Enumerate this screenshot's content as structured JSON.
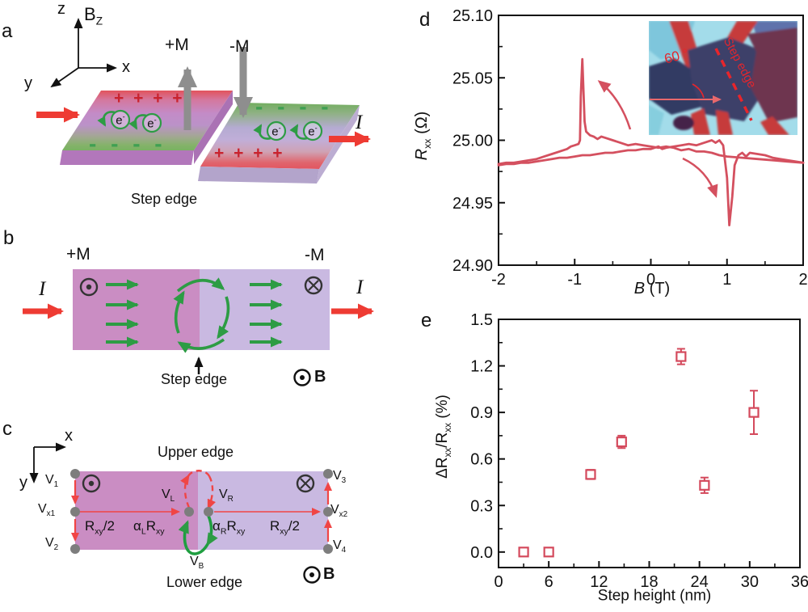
{
  "figure": {
    "panel_a": {
      "label": "a",
      "axis_z": "z",
      "axis_x": "x",
      "axis_y": "y",
      "bz": [
        {
          "t": "B"
        },
        {
          "t": "Z",
          "sub": true
        }
      ],
      "plus_m": "+M",
      "minus_m": "-M",
      "plus_charges_left": "+ + + +",
      "minus_charges_left": "- - - -",
      "minus_charges_right": "- - - -",
      "plus_charges_right": "+ + + +",
      "electron": [
        {
          "t": "e"
        },
        {
          "t": "-",
          "sup": true
        }
      ],
      "current_out": "I",
      "step_edge": "Step edge"
    },
    "panel_b": {
      "label": "b",
      "plus_m": "+M",
      "minus_m": "-M",
      "current_in": "I",
      "current_out": "I",
      "step_edge": "Step edge",
      "field": "B"
    },
    "panel_c": {
      "label": "c",
      "axis_x": "x",
      "axis_y": "y",
      "upper_edge": "Upper edge",
      "lower_edge": "Lower edge",
      "v1": [
        {
          "t": "V"
        },
        {
          "t": "1",
          "sub": true
        }
      ],
      "vx1": [
        {
          "t": "V"
        },
        {
          "t": "x1",
          "sub": true
        }
      ],
      "v2": [
        {
          "t": "V"
        },
        {
          "t": "2",
          "sub": true
        }
      ],
      "v3": [
        {
          "t": "V"
        },
        {
          "t": "3",
          "sub": true
        }
      ],
      "vx2": [
        {
          "t": "V"
        },
        {
          "t": "x2",
          "sub": true
        }
      ],
      "v4": [
        {
          "t": "V"
        },
        {
          "t": "4",
          "sub": true
        }
      ],
      "vl": [
        {
          "t": "V"
        },
        {
          "t": "L",
          "sub": true
        }
      ],
      "vr": [
        {
          "t": "V"
        },
        {
          "t": "R",
          "sub": true
        }
      ],
      "vb": [
        {
          "t": "V"
        },
        {
          "t": "B",
          "sub": true
        }
      ],
      "rxy_left": [
        {
          "t": "R"
        },
        {
          "t": "xy",
          "sub": true
        },
        {
          "t": "/2"
        }
      ],
      "rxy_right": [
        {
          "t": "R"
        },
        {
          "t": "xy",
          "sub": true
        },
        {
          "t": "/2"
        }
      ],
      "alpha_l": [
        {
          "t": "α"
        },
        {
          "t": "L",
          "sub": true
        },
        {
          "t": "R"
        },
        {
          "t": "xy",
          "sub": true
        }
      ],
      "alpha_r": [
        {
          "t": "α"
        },
        {
          "t": "R",
          "sub": true
        },
        {
          "t": "R"
        },
        {
          "t": "xy",
          "sub": true
        }
      ],
      "field": "B"
    },
    "panel_d": {
      "label": "d",
      "ylabel": [
        {
          "t": "R",
          "i": true
        },
        {
          "t": "xx",
          "sub": true
        },
        {
          "t": " (Ω)"
        }
      ],
      "xlabel": [
        {
          "t": "B",
          "i": true
        },
        {
          "t": " (T)"
        }
      ],
      "inset_angle": "60 °",
      "inset_step_edge": "Step edge"
    },
    "panel_e": {
      "label": "e",
      "ylabel": [
        {
          "t": "ΔR"
        },
        {
          "t": "xx",
          "sub": true
        },
        {
          "t": "/R"
        },
        {
          "t": "xx",
          "sub": true
        },
        {
          "t": "  (%)"
        }
      ],
      "xlabel": "Step height (nm)"
    }
  },
  "colors": {
    "curve_red": "#d4505f",
    "marker_red": "#d4495c",
    "bright_red": "#ee3b33",
    "green": "#2d9c44",
    "gray_arrow": "#8e8e8e",
    "slab_pink": "#ca8dc3",
    "slab_lavender": "#c9b9e1",
    "inset_cyan": "#a3dcea"
  },
  "chart_data": [
    {
      "id": "rxx_vs_b",
      "type": "line",
      "xlabel": "B (T)",
      "ylabel": "Rxx (Ω)",
      "xlim": [
        -2,
        2
      ],
      "ylim": [
        24.9,
        25.1
      ],
      "xticks": [
        -2,
        -1,
        0,
        1,
        2
      ],
      "xtick_labels": [
        "-2",
        "-1",
        "0",
        "1",
        "2"
      ],
      "yticks": [
        24.9,
        24.95,
        25.0,
        25.05,
        25.1
      ],
      "ytick_labels": [
        "24.90",
        "24.95",
        "25.00",
        "25.05",
        "25.10"
      ],
      "grid": false,
      "line_color": "#d4505f",
      "series": [
        {
          "name": "sweep_positive_to_negative",
          "points": [
            [
              2.0,
              24.982
            ],
            [
              1.8,
              24.983
            ],
            [
              1.6,
              24.984
            ],
            [
              1.4,
              24.985
            ],
            [
              1.2,
              24.986
            ],
            [
              1.0,
              24.987
            ],
            [
              0.9,
              24.988
            ],
            [
              0.8,
              24.99
            ],
            [
              0.7,
              24.991
            ],
            [
              0.6,
              24.991
            ],
            [
              0.5,
              24.993
            ],
            [
              0.4,
              24.992
            ],
            [
              0.3,
              24.994
            ],
            [
              0.2,
              24.995
            ],
            [
              0.1,
              24.994
            ],
            [
              0.0,
              24.995
            ],
            [
              -0.1,
              24.996
            ],
            [
              -0.2,
              24.997
            ],
            [
              -0.3,
              24.996
            ],
            [
              -0.4,
              24.998
            ],
            [
              -0.5,
              25.0
            ],
            [
              -0.6,
              25.002
            ],
            [
              -0.65,
              25.003
            ],
            [
              -0.7,
              25.001
            ],
            [
              -0.75,
              25.003
            ],
            [
              -0.8,
              25.004
            ],
            [
              -0.85,
              25.007
            ],
            [
              -0.87,
              25.015
            ],
            [
              -0.9,
              25.065
            ],
            [
              -0.92,
              25.035
            ],
            [
              -0.93,
              25.0
            ],
            [
              -0.95,
              24.997
            ],
            [
              -1.0,
              24.996
            ],
            [
              -1.05,
              24.995
            ],
            [
              -1.1,
              24.993
            ],
            [
              -1.2,
              24.991
            ],
            [
              -1.3,
              24.989
            ],
            [
              -1.4,
              24.987
            ],
            [
              -1.5,
              24.985
            ],
            [
              -1.6,
              24.984
            ],
            [
              -1.7,
              24.983
            ],
            [
              -1.8,
              24.982
            ],
            [
              -1.9,
              24.982
            ],
            [
              -2.0,
              24.981
            ]
          ]
        },
        {
          "name": "sweep_negative_to_positive",
          "points": [
            [
              -2.0,
              24.98
            ],
            [
              -1.9,
              24.981
            ],
            [
              -1.8,
              24.981
            ],
            [
              -1.7,
              24.982
            ],
            [
              -1.6,
              24.982
            ],
            [
              -1.5,
              24.983
            ],
            [
              -1.4,
              24.984
            ],
            [
              -1.3,
              24.985
            ],
            [
              -1.2,
              24.986
            ],
            [
              -1.1,
              24.986
            ],
            [
              -1.0,
              24.987
            ],
            [
              -0.9,
              24.988
            ],
            [
              -0.8,
              24.988
            ],
            [
              -0.7,
              24.989
            ],
            [
              -0.6,
              24.99
            ],
            [
              -0.5,
              24.99
            ],
            [
              -0.4,
              24.991
            ],
            [
              -0.3,
              24.992
            ],
            [
              -0.2,
              24.992
            ],
            [
              -0.1,
              24.993
            ],
            [
              0.0,
              24.993
            ],
            [
              0.1,
              24.995
            ],
            [
              0.15,
              24.993
            ],
            [
              0.2,
              24.994
            ],
            [
              0.3,
              24.995
            ],
            [
              0.4,
              24.996
            ],
            [
              0.5,
              24.997
            ],
            [
              0.6,
              24.996
            ],
            [
              0.7,
              24.998
            ],
            [
              0.8,
              25.0
            ],
            [
              0.85,
              24.998
            ],
            [
              0.9,
              25.0
            ],
            [
              0.95,
              24.996
            ],
            [
              1.0,
              24.97
            ],
            [
              1.03,
              24.932
            ],
            [
              1.07,
              24.955
            ],
            [
              1.1,
              24.98
            ],
            [
              1.15,
              24.988
            ],
            [
              1.2,
              24.99
            ],
            [
              1.25,
              24.987
            ],
            [
              1.3,
              24.99
            ],
            [
              1.4,
              24.989
            ],
            [
              1.5,
              24.988
            ],
            [
              1.6,
              24.986
            ],
            [
              1.7,
              24.985
            ],
            [
              1.8,
              24.984
            ],
            [
              1.9,
              24.983
            ],
            [
              2.0,
              24.982
            ]
          ]
        }
      ]
    },
    {
      "id": "step_height_dependence",
      "type": "scatter",
      "xlabel": "Step height (nm)",
      "ylabel": "ΔRxx/Rxx (%)",
      "xlim": [
        0,
        36
      ],
      "ylim": [
        -0.1,
        1.5
      ],
      "xticks": [
        0,
        6,
        12,
        18,
        24,
        30,
        36
      ],
      "xtick_labels": [
        "0",
        "6",
        "12",
        "18",
        "24",
        "30",
        "36"
      ],
      "yticks": [
        0.0,
        0.3,
        0.6,
        0.9,
        1.2,
        1.5
      ],
      "ytick_labels": [
        "0.0",
        "0.3",
        "0.6",
        "0.9",
        "1.2",
        "1.5"
      ],
      "grid": false,
      "marker": "open-square",
      "marker_color": "#d4495c",
      "points": [
        {
          "x": 3,
          "y": 0.0,
          "yerr": 0
        },
        {
          "x": 6,
          "y": 0.0,
          "yerr": 0
        },
        {
          "x": 11,
          "y": 0.5,
          "yerr": 0.03
        },
        {
          "x": 14.7,
          "y": 0.71,
          "yerr": 0.04
        },
        {
          "x": 21.8,
          "y": 1.26,
          "yerr": 0.05
        },
        {
          "x": 24.6,
          "y": 0.43,
          "yerr": 0.05
        },
        {
          "x": 30.5,
          "y": 0.9,
          "yerr": 0.14
        }
      ]
    }
  ]
}
